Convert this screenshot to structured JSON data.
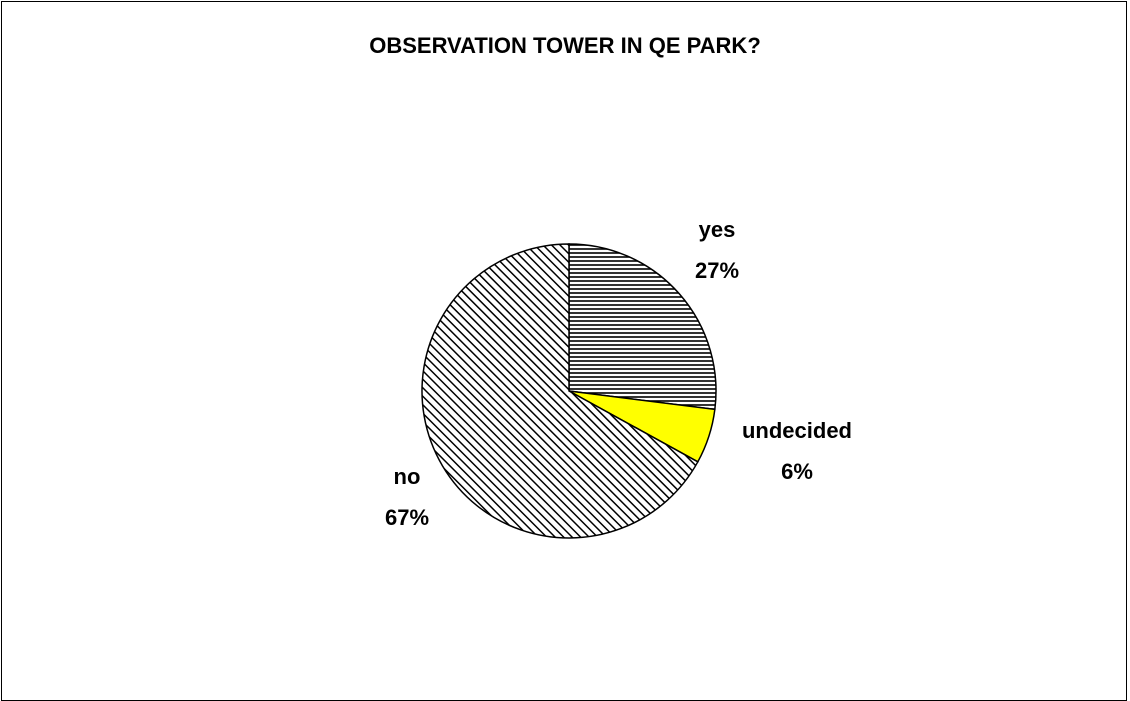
{
  "chart_data": {
    "type": "pie",
    "title": "OBSERVATION TOWER IN QE PARK?",
    "slices": [
      {
        "label": "yes",
        "value": 27,
        "display": "27%",
        "fill": "pattern-horizontal",
        "color": "#000000"
      },
      {
        "label": "undecided",
        "value": 6,
        "display": "6%",
        "fill": "solid",
        "color": "#ffff00"
      },
      {
        "label": "no",
        "value": 67,
        "display": "67%",
        "fill": "pattern-diagonal",
        "color": "#000000"
      }
    ],
    "start_angle_deg": 0,
    "direction": "clockwise",
    "legend": "none"
  }
}
